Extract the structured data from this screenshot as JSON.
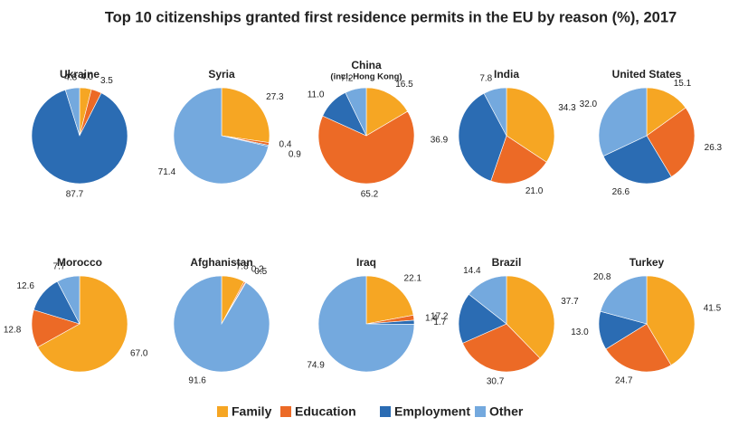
{
  "title": "Top 10 citizenships granted first residence permits in the EU by reason (%), 2017",
  "chart_data": [
    {
      "type": "pie",
      "title": "Ukraine",
      "categories": [
        "Family",
        "Education",
        "Employment",
        "Other"
      ],
      "colors": [
        "#f6a623",
        "#ec6a26",
        "#2b6cb3",
        "#74a9de"
      ],
      "values": [
        4.0,
        3.5,
        87.7,
        4.8
      ],
      "value_labels": [
        "4.0",
        "3.5",
        "87.7",
        "4.8"
      ]
    },
    {
      "type": "pie",
      "title": "Syria",
      "categories": [
        "Family",
        "Education",
        "Employment",
        "Other"
      ],
      "colors": [
        "#f6a623",
        "#ec6a26",
        "#2b6cb3",
        "#74a9de"
      ],
      "values": [
        27.3,
        0.9,
        0.4,
        71.4
      ],
      "value_labels": [
        "27.3",
        "0.9",
        "0.4",
        "71.4"
      ]
    },
    {
      "type": "pie",
      "title": "China",
      "subtitle": "(incl. Hong Kong)",
      "categories": [
        "Family",
        "Education",
        "Employment",
        "Other"
      ],
      "colors": [
        "#f6a623",
        "#ec6a26",
        "#2b6cb3",
        "#74a9de"
      ],
      "values": [
        16.5,
        65.2,
        11.0,
        7.2
      ],
      "value_labels": [
        "16.5",
        "65.2",
        "11.0",
        "7.2"
      ]
    },
    {
      "type": "pie",
      "title": "India",
      "categories": [
        "Family",
        "Education",
        "Employment",
        "Other"
      ],
      "colors": [
        "#f6a623",
        "#ec6a26",
        "#2b6cb3",
        "#74a9de"
      ],
      "values": [
        34.3,
        21.0,
        36.9,
        7.8
      ],
      "value_labels": [
        "34.3",
        "21.0",
        "36.9",
        "7.8"
      ]
    },
    {
      "type": "pie",
      "title": "United States",
      "categories": [
        "Family",
        "Education",
        "Employment",
        "Other"
      ],
      "colors": [
        "#f6a623",
        "#ec6a26",
        "#2b6cb3",
        "#74a9de"
      ],
      "values": [
        15.1,
        26.3,
        26.6,
        32.0
      ],
      "value_labels": [
        "15.1",
        "26.3",
        "26.6",
        "32.0"
      ]
    },
    {
      "type": "pie",
      "title": "Morocco",
      "categories": [
        "Family",
        "Education",
        "Employment",
        "Other"
      ],
      "colors": [
        "#f6a623",
        "#ec6a26",
        "#2b6cb3",
        "#74a9de"
      ],
      "values": [
        67.0,
        12.8,
        12.6,
        7.7
      ],
      "value_labels": [
        "67.0",
        "12.8",
        "12.6",
        "7.7"
      ]
    },
    {
      "type": "pie",
      "title": "Afghanistan",
      "categories": [
        "Family",
        "Education",
        "Employment",
        "Other"
      ],
      "colors": [
        "#f6a623",
        "#ec6a26",
        "#2b6cb3",
        "#74a9de"
      ],
      "values": [
        7.8,
        0.5,
        0.2,
        91.6
      ],
      "value_labels": [
        "7.8",
        "0.5",
        "0.2",
        "91.6"
      ]
    },
    {
      "type": "pie",
      "title": "Iraq",
      "categories": [
        "Family",
        "Education",
        "Employment",
        "Other"
      ],
      "colors": [
        "#f6a623",
        "#ec6a26",
        "#2b6cb3",
        "#74a9de"
      ],
      "values": [
        22.1,
        1.7,
        1.4,
        74.9
      ],
      "value_labels": [
        "22.1",
        "1.7",
        "1.4",
        "74.9"
      ]
    },
    {
      "type": "pie",
      "title": "Brazil",
      "categories": [
        "Family",
        "Education",
        "Employment",
        "Other"
      ],
      "colors": [
        "#f6a623",
        "#ec6a26",
        "#2b6cb3",
        "#74a9de"
      ],
      "values": [
        37.7,
        30.7,
        17.2,
        14.4
      ],
      "value_labels": [
        "37.7",
        "30.7",
        "17.2",
        "14.4"
      ]
    },
    {
      "type": "pie",
      "title": "Turkey",
      "categories": [
        "Family",
        "Education",
        "Employment",
        "Other"
      ],
      "colors": [
        "#f6a623",
        "#ec6a26",
        "#2b6cb3",
        "#74a9de"
      ],
      "values": [
        41.5,
        24.7,
        13.0,
        20.8
      ],
      "value_labels": [
        "41.5",
        "24.7",
        "13.0",
        "20.8"
      ]
    }
  ]
}
